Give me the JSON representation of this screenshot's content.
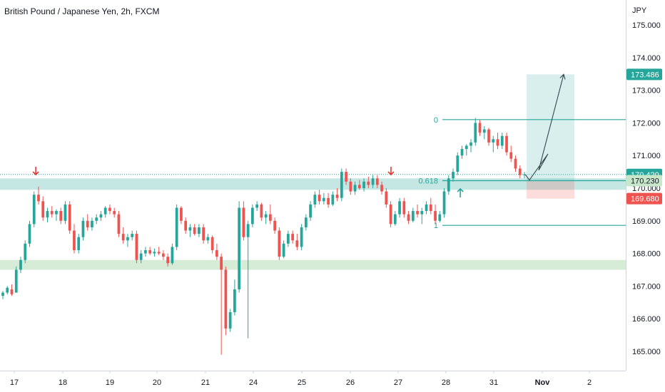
{
  "header": {
    "title": "British Pound / Japanese Yen, 2h, FXCM"
  },
  "chart_data": {
    "type": "candlestick",
    "title": "British Pound / Japanese Yen, 2h, FXCM",
    "currency": "JPY",
    "ylim": [
      164.65,
      175.6
    ],
    "y_ticks": [
      "165.000",
      "166.000",
      "167.000",
      "168.000",
      "169.000",
      "170.000",
      "171.000",
      "172.000",
      "173.000",
      "174.000",
      "175.000"
    ],
    "x_ticks": [
      "17",
      "18",
      "19",
      "20",
      "21",
      "24",
      "25",
      "26",
      "27",
      "28",
      "31",
      "Nov",
      "2"
    ],
    "price_labels": [
      {
        "label": "173.486",
        "value": 173.486,
        "color": "#26a69a"
      },
      {
        "label": "170.420",
        "value": 170.42,
        "color": "#26a69a"
      },
      {
        "label": "170.230",
        "value": 170.23,
        "color": "#c8e6c9"
      },
      {
        "label": "169.680",
        "value": 169.68,
        "color": "#ef5350"
      }
    ],
    "fib_levels": [
      {
        "label": "0",
        "value": 172.1
      },
      {
        "label": "0.618",
        "value": 170.23
      },
      {
        "label": "1",
        "value": 168.86
      }
    ],
    "zones": [
      {
        "name": "resistance-support",
        "low": 169.95,
        "high": 170.3,
        "color": "#b2dfdb"
      },
      {
        "name": "lower-support",
        "low": 167.5,
        "high": 167.8,
        "color": "#c8e6c9"
      }
    ],
    "position": {
      "entry": 170.23,
      "target": 173.486,
      "stop": 169.68
    },
    "current_price": 170.42,
    "arrows": [
      {
        "dir": "down",
        "x_tick": "17",
        "offset_days": 0.45
      },
      {
        "dir": "down",
        "x_tick": "27",
        "offset_days": -0.15
      },
      {
        "dir": "up",
        "x_tick": "28",
        "offset_days": 0.3
      }
    ],
    "ohlc": [
      [
        166.7,
        166.85,
        166.6,
        166.8
      ],
      [
        166.8,
        167.0,
        166.75,
        166.95
      ],
      [
        166.9,
        167.05,
        166.7,
        166.75
      ],
      [
        166.8,
        167.6,
        166.8,
        167.5
      ],
      [
        167.5,
        167.9,
        167.4,
        167.8
      ],
      [
        167.8,
        168.4,
        167.7,
        168.3
      ],
      [
        168.3,
        169.0,
        168.2,
        168.9
      ],
      [
        168.9,
        169.9,
        168.8,
        169.8
      ],
      [
        169.8,
        170.05,
        169.5,
        169.6
      ],
      [
        169.6,
        169.75,
        169.0,
        169.1
      ],
      [
        169.1,
        169.4,
        168.95,
        169.3
      ],
      [
        169.3,
        169.45,
        169.1,
        169.2
      ],
      [
        169.2,
        169.35,
        169.0,
        169.3
      ],
      [
        169.3,
        169.4,
        168.9,
        169.0
      ],
      [
        169.0,
        169.6,
        168.9,
        169.5
      ],
      [
        169.5,
        169.6,
        168.6,
        168.7
      ],
      [
        168.7,
        168.9,
        168.0,
        168.1
      ],
      [
        168.1,
        168.6,
        168.0,
        168.5
      ],
      [
        168.5,
        169.1,
        168.4,
        169.0
      ],
      [
        169.0,
        169.2,
        168.7,
        168.8
      ],
      [
        168.8,
        169.1,
        168.7,
        169.0
      ],
      [
        169.0,
        169.2,
        168.9,
        169.1
      ],
      [
        169.1,
        169.3,
        169.0,
        169.2
      ],
      [
        169.2,
        169.45,
        169.1,
        169.4
      ],
      [
        169.4,
        169.5,
        169.2,
        169.3
      ],
      [
        169.3,
        169.4,
        169.1,
        169.2
      ],
      [
        169.2,
        169.3,
        168.5,
        168.6
      ],
      [
        168.6,
        168.8,
        168.3,
        168.4
      ],
      [
        168.4,
        168.6,
        168.2,
        168.5
      ],
      [
        168.5,
        168.7,
        168.4,
        168.6
      ],
      [
        168.6,
        168.7,
        167.7,
        167.8
      ],
      [
        167.8,
        168.1,
        167.7,
        168.0
      ],
      [
        168.0,
        168.2,
        167.9,
        168.1
      ],
      [
        168.1,
        168.2,
        167.95,
        168.0
      ],
      [
        168.0,
        168.15,
        167.9,
        168.05
      ],
      [
        168.05,
        168.2,
        167.95,
        168.0
      ],
      [
        168.0,
        168.1,
        167.8,
        167.9
      ],
      [
        167.9,
        168.0,
        167.6,
        167.7
      ],
      [
        167.7,
        168.3,
        167.65,
        168.2
      ],
      [
        168.2,
        169.5,
        168.1,
        169.4
      ],
      [
        169.4,
        169.45,
        168.9,
        169.0
      ],
      [
        169.0,
        169.1,
        168.6,
        168.7
      ],
      [
        168.7,
        168.9,
        168.5,
        168.8
      ],
      [
        168.8,
        168.9,
        168.55,
        168.6
      ],
      [
        168.6,
        168.9,
        168.5,
        168.8
      ],
      [
        168.8,
        168.9,
        168.3,
        168.4
      ],
      [
        168.4,
        168.6,
        168.3,
        168.5
      ],
      [
        168.5,
        168.55,
        168.0,
        168.1
      ],
      [
        168.1,
        168.3,
        167.8,
        167.9
      ],
      [
        167.9,
        168.0,
        164.9,
        167.5
      ],
      [
        167.5,
        167.6,
        165.5,
        165.7
      ],
      [
        165.7,
        166.3,
        165.6,
        166.2
      ],
      [
        166.2,
        167.2,
        166.1,
        166.9
      ],
      [
        166.9,
        169.6,
        166.8,
        169.4
      ],
      [
        169.4,
        169.6,
        168.4,
        168.5
      ],
      [
        168.5,
        169.0,
        165.4,
        168.9
      ],
      [
        168.9,
        169.5,
        168.8,
        169.4
      ],
      [
        169.4,
        169.6,
        169.3,
        169.5
      ],
      [
        169.5,
        169.55,
        169.0,
        169.1
      ],
      [
        169.1,
        169.3,
        168.9,
        169.2
      ],
      [
        169.2,
        169.5,
        168.9,
        169.0
      ],
      [
        169.0,
        169.1,
        168.6,
        168.7
      ],
      [
        168.7,
        168.8,
        167.8,
        167.9
      ],
      [
        167.9,
        168.4,
        167.85,
        168.3
      ],
      [
        168.3,
        168.7,
        168.2,
        168.6
      ],
      [
        168.6,
        168.7,
        168.3,
        168.4
      ],
      [
        168.4,
        168.6,
        168.1,
        168.2
      ],
      [
        168.2,
        168.9,
        168.1,
        168.8
      ],
      [
        168.8,
        169.2,
        168.7,
        169.1
      ],
      [
        169.1,
        169.6,
        169.0,
        169.5
      ],
      [
        169.5,
        169.9,
        169.4,
        169.8
      ],
      [
        169.8,
        169.95,
        169.5,
        169.6
      ],
      [
        169.6,
        169.85,
        169.5,
        169.7
      ],
      [
        169.7,
        169.85,
        169.4,
        169.5
      ],
      [
        169.5,
        169.9,
        169.45,
        169.8
      ],
      [
        169.8,
        170.0,
        169.6,
        169.7
      ],
      [
        169.7,
        170.6,
        169.6,
        170.5
      ],
      [
        170.5,
        170.6,
        170.1,
        170.2
      ],
      [
        170.2,
        170.3,
        169.8,
        169.9
      ],
      [
        169.9,
        170.2,
        169.8,
        170.1
      ],
      [
        170.1,
        170.25,
        169.95,
        170.0
      ],
      [
        170.0,
        170.3,
        169.9,
        170.2
      ],
      [
        170.2,
        170.35,
        170.0,
        170.1
      ],
      [
        170.1,
        170.4,
        170.0,
        170.3
      ],
      [
        170.3,
        170.4,
        170.0,
        170.1
      ],
      [
        170.1,
        170.2,
        169.8,
        169.9
      ],
      [
        169.9,
        170.0,
        169.4,
        169.5
      ],
      [
        169.5,
        169.6,
        168.8,
        168.9
      ],
      [
        168.9,
        169.3,
        168.85,
        169.2
      ],
      [
        169.2,
        169.7,
        169.1,
        169.6
      ],
      [
        169.6,
        169.7,
        169.1,
        169.2
      ],
      [
        169.2,
        169.3,
        168.9,
        169.0
      ],
      [
        169.0,
        169.4,
        168.95,
        169.3
      ],
      [
        169.3,
        169.5,
        169.1,
        169.2
      ],
      [
        169.2,
        169.4,
        168.9,
        169.3
      ],
      [
        169.3,
        169.6,
        169.2,
        169.5
      ],
      [
        169.5,
        169.7,
        169.2,
        169.3
      ],
      [
        169.3,
        169.5,
        168.9,
        169.0
      ],
      [
        169.0,
        169.3,
        168.95,
        169.2
      ],
      [
        169.2,
        170.0,
        169.1,
        169.9
      ],
      [
        169.9,
        170.4,
        169.8,
        170.3
      ],
      [
        170.3,
        170.6,
        170.2,
        170.5
      ],
      [
        170.5,
        171.1,
        170.4,
        171.0
      ],
      [
        171.0,
        171.3,
        170.9,
        171.2
      ],
      [
        171.2,
        171.35,
        171.0,
        171.3
      ],
      [
        171.3,
        171.5,
        171.1,
        171.4
      ],
      [
        171.4,
        172.15,
        171.3,
        172.0
      ],
      [
        172.0,
        172.1,
        171.6,
        171.7
      ],
      [
        171.7,
        171.9,
        171.5,
        171.8
      ],
      [
        171.8,
        171.85,
        171.3,
        171.4
      ],
      [
        171.4,
        171.6,
        171.1,
        171.5
      ],
      [
        171.5,
        171.7,
        171.2,
        171.3
      ],
      [
        171.3,
        171.7,
        171.2,
        171.6
      ],
      [
        171.6,
        171.7,
        171.0,
        171.1
      ],
      [
        171.1,
        171.3,
        170.8,
        170.9
      ],
      [
        170.9,
        171.0,
        170.5,
        170.6
      ],
      [
        170.6,
        170.7,
        170.3,
        170.4
      ],
      [
        170.4,
        170.5,
        170.3,
        170.42
      ]
    ],
    "projection": [
      {
        "day": 3.0,
        "value": 170.42
      },
      {
        "day": 3.25,
        "value": 170.25
      },
      {
        "day": 3.6,
        "value": 171.05
      },
      {
        "day": 3.85,
        "value": 170.55
      },
      {
        "day": 4.8,
        "value": 173.486
      }
    ]
  }
}
